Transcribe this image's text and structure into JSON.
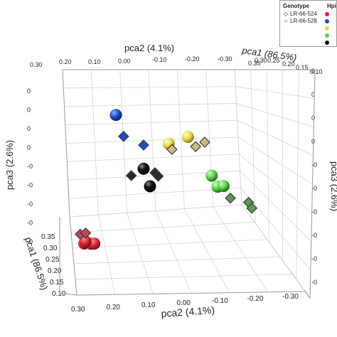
{
  "chart_data": {
    "type": "scatter",
    "view": "3d",
    "axes": {
      "x": {
        "label": "pca2 (4.1%)",
        "ticks": [
          0.3,
          0.2,
          0.1,
          0.0,
          -0.1,
          -0.2,
          -0.3
        ],
        "tick_labels": [
          "0.30",
          "0.20",
          "0.10",
          "0.00",
          "-0.10",
          "-0.20",
          "-0.30"
        ]
      },
      "y": {
        "label": "pca1 (86.5%)",
        "ticks": [
          0.35,
          0.3,
          0.25,
          0.2,
          0.15,
          0.1
        ],
        "tick_labels": [
          "0.35",
          "0.30",
          "0.25",
          "0.20",
          "0.15",
          "0.10"
        ]
      },
      "z": {
        "label": "pca3 (2.6%)",
        "tick_labels": [
          "0",
          "0",
          "0",
          "0",
          "-0",
          "-0",
          "-0",
          "-0",
          "-0",
          "-0"
        ]
      }
    },
    "top_labels": {
      "x_label": "pca2 (4.1%)",
      "x_ticks": [
        "0.30",
        "0.20",
        "0.10",
        "0.00",
        "-0.10",
        "-0.20",
        "-0.30"
      ],
      "y_label": "pca1 (86.5%)",
      "y_ticks": [
        "0.10",
        "0.15",
        "0.20",
        "0.25",
        "0.30",
        "0.35"
      ],
      "z_label_left": "pca3 (2.6%)",
      "z_label_right": "pca3 (2.6%)"
    },
    "left_z_ticks": [
      "0",
      "0",
      "0",
      "0",
      "-0",
      "-0",
      "-0",
      "-0",
      "-0"
    ],
    "right_z_ticks": [
      "0",
      "0",
      "0",
      "0",
      "-0",
      "-0",
      "-0",
      "-0",
      "-0",
      "-0"
    ],
    "bottom_y_ticks": [
      "0.35",
      "0.30",
      "0.25",
      "0.20",
      "0.15",
      "0.10"
    ],
    "bottom_x_ticks": [
      "0.30",
      "0.20",
      "0.10",
      "0.00",
      "-0.10",
      "-0.20",
      "-0.30"
    ],
    "bottom_x_label": "pca2 (4.1%)",
    "bottom_y_label": "pca1 (86.5%)",
    "grid": true,
    "legend_position": "top-right",
    "legend": {
      "genotype_title": "Genotype",
      "genotypes": [
        {
          "name": "LR-66-524",
          "marker": "diamond"
        },
        {
          "name": "LR-66-528",
          "marker": "sphere"
        }
      ],
      "hpi_title": "Hpi",
      "hpi_colors": [
        "#e8202a",
        "#1f4fbf",
        "#e8d84a",
        "#5ccf4a",
        "#111111"
      ]
    },
    "series": [
      {
        "color": "#d8283a",
        "marker": "sphere",
        "points": [
          [
            0.29,
            0.31,
            -0.8
          ],
          [
            0.27,
            0.32,
            -0.8
          ],
          [
            0.26,
            0.32,
            -0.8
          ],
          [
            0.28,
            0.27,
            -0.8
          ]
        ]
      },
      {
        "color": "#b84a5a",
        "marker": "diamond",
        "points": [
          [
            0.31,
            0.36,
            -0.7
          ],
          [
            0.29,
            0.34,
            -0.7
          ]
        ]
      },
      {
        "color": "#1f4fbf",
        "marker": "sphere",
        "points": [
          [
            0.2,
            0.37,
            0.3
          ]
        ]
      },
      {
        "color": "#1f4fbf",
        "marker": "diamond",
        "points": [
          [
            0.17,
            0.33,
            0.1
          ],
          [
            0.1,
            0.28,
            0.0
          ]
        ]
      },
      {
        "color": "#e8d84a",
        "marker": "sphere",
        "points": [
          [
            0.02,
            0.27,
            0.0
          ],
          [
            -0.04,
            0.27,
            0.05
          ]
        ]
      },
      {
        "color": "#c8c080",
        "marker": "diamond",
        "points": [
          [
            0.01,
            0.27,
            -0.05
          ],
          [
            -0.07,
            0.23,
            -0.05
          ],
          [
            -0.1,
            0.22,
            -0.02
          ]
        ]
      },
      {
        "color": "#5ccf4a",
        "marker": "sphere",
        "points": [
          [
            -0.12,
            0.23,
            -0.3
          ],
          [
            -0.14,
            0.22,
            -0.4
          ],
          [
            -0.16,
            0.21,
            -0.4
          ]
        ]
      },
      {
        "color": "#5a9a50",
        "marker": "diamond",
        "points": [
          [
            -0.18,
            0.22,
            -0.5
          ],
          [
            -0.24,
            0.2,
            -0.55
          ],
          [
            -0.25,
            0.2,
            -0.6
          ]
        ]
      },
      {
        "color": "#111111",
        "marker": "sphere",
        "points": [
          [
            0.1,
            0.28,
            -0.2
          ],
          [
            0.08,
            0.28,
            -0.35
          ]
        ]
      },
      {
        "color": "#2a2a2a",
        "marker": "diamond",
        "points": [
          [
            0.14,
            0.29,
            -0.25
          ],
          [
            0.06,
            0.25,
            -0.25
          ],
          [
            0.05,
            0.25,
            -0.28
          ]
        ]
      }
    ]
  }
}
